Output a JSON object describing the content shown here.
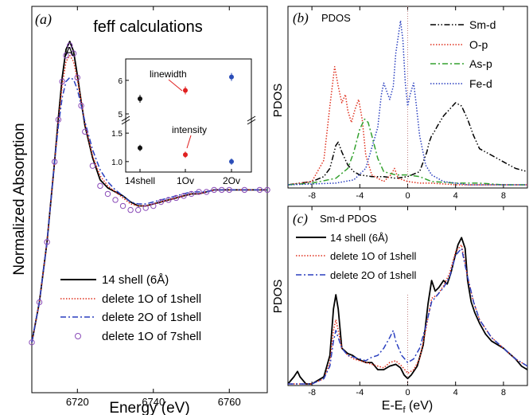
{
  "chart_data": [
    {
      "panel": "(a)",
      "type": "line",
      "title": "feff calculations",
      "xlabel": "Energy (eV)",
      "ylabel": "Normalized Absorption",
      "xlim": [
        6708,
        6770
      ],
      "ylim": [
        0,
        1.6
      ],
      "xticks": [
        6720,
        6740,
        6760
      ],
      "peak_label": "A",
      "legend_position": "bottom-left",
      "series": [
        {
          "name": "14 shell (6Å)",
          "color": "#000000",
          "style": "solid",
          "x": [
            6708,
            6710,
            6712,
            6714,
            6715,
            6716,
            6717,
            6718,
            6719,
            6720,
            6721,
            6722,
            6724,
            6726,
            6728,
            6730,
            6732,
            6734,
            6736,
            6738,
            6740,
            6742,
            6744,
            6746,
            6748,
            6750,
            6752,
            6754,
            6756,
            6758,
            6760,
            6764,
            6768,
            6770
          ],
          "y": [
            0.1,
            0.3,
            0.6,
            1.0,
            1.22,
            1.42,
            1.56,
            1.6,
            1.55,
            1.43,
            1.3,
            1.18,
            1.02,
            0.91,
            0.87,
            0.85,
            0.83,
            0.8,
            0.78,
            0.78,
            0.79,
            0.8,
            0.81,
            0.82,
            0.83,
            0.84,
            0.84,
            0.85,
            0.86,
            0.86,
            0.86,
            0.86,
            0.86,
            0.86
          ]
        },
        {
          "name": "delete 1O of 1shell",
          "color": "#e0301e",
          "style": "dotted",
          "x": [
            6708,
            6710,
            6712,
            6714,
            6715,
            6716,
            6717,
            6718,
            6719,
            6720,
            6721,
            6722,
            6724,
            6726,
            6728,
            6730,
            6732,
            6734,
            6736,
            6738,
            6740,
            6742,
            6744,
            6746,
            6748,
            6750,
            6752,
            6754,
            6756,
            6758,
            6760,
            6764,
            6768,
            6770
          ],
          "y": [
            0.1,
            0.3,
            0.6,
            1.0,
            1.2,
            1.38,
            1.5,
            1.53,
            1.5,
            1.41,
            1.3,
            1.19,
            1.03,
            0.93,
            0.88,
            0.85,
            0.82,
            0.79,
            0.78,
            0.78,
            0.79,
            0.8,
            0.81,
            0.82,
            0.83,
            0.84,
            0.84,
            0.85,
            0.86,
            0.86,
            0.86,
            0.86,
            0.86,
            0.86
          ]
        },
        {
          "name": "delete 2O of 1shell",
          "color": "#2a3fbf",
          "style": "dashdot",
          "x": [
            6708,
            6710,
            6712,
            6714,
            6715,
            6716,
            6717,
            6718,
            6719,
            6720,
            6721,
            6722,
            6724,
            6726,
            6728,
            6730,
            6732,
            6734,
            6736,
            6738,
            6740,
            6742,
            6744,
            6746,
            6748,
            6750,
            6752,
            6754,
            6756,
            6758,
            6760,
            6764,
            6768,
            6770
          ],
          "y": [
            0.1,
            0.3,
            0.6,
            1.0,
            1.18,
            1.32,
            1.4,
            1.42,
            1.41,
            1.36,
            1.28,
            1.2,
            1.06,
            0.96,
            0.9,
            0.86,
            0.83,
            0.8,
            0.79,
            0.79,
            0.8,
            0.81,
            0.82,
            0.83,
            0.84,
            0.85,
            0.85,
            0.85,
            0.86,
            0.86,
            0.86,
            0.86,
            0.86,
            0.86
          ]
        },
        {
          "name": "delete 1O of 7shell",
          "color": "#8a4bb8",
          "style": "circles",
          "x": [
            6708,
            6710,
            6712,
            6714,
            6715,
            6716,
            6717,
            6718,
            6719,
            6720,
            6721,
            6722,
            6724,
            6726,
            6728,
            6730,
            6732,
            6734,
            6736,
            6738,
            6740,
            6742,
            6744,
            6746,
            6748,
            6750,
            6752,
            6754,
            6756,
            6758,
            6760,
            6764,
            6768,
            6770
          ],
          "y": [
            0.1,
            0.3,
            0.6,
            1.0,
            1.21,
            1.4,
            1.53,
            1.58,
            1.54,
            1.42,
            1.28,
            1.15,
            0.98,
            0.88,
            0.84,
            0.81,
            0.78,
            0.76,
            0.76,
            0.77,
            0.78,
            0.8,
            0.81,
            0.82,
            0.83,
            0.84,
            0.85,
            0.85,
            0.86,
            0.86,
            0.86,
            0.86,
            0.86,
            0.86
          ]
        }
      ],
      "inset": {
        "type": "scatter",
        "categories": [
          "14shell",
          "1Ov",
          "2Ov"
        ],
        "colors": [
          "#111111",
          "#e02020",
          "#2a4db8"
        ],
        "yticks_upper": [
          "5",
          "6"
        ],
        "yticks_lower": [
          "1.0",
          "1.5"
        ],
        "upper": {
          "label": "linewidth",
          "ylim": [
            5,
            6.4
          ],
          "values": [
            5.45,
            5.7,
            6.1
          ]
        },
        "lower": {
          "label": "intensity",
          "ylim": [
            0.9,
            1.6
          ],
          "values": [
            1.24,
            1.12,
            1.0
          ]
        }
      }
    },
    {
      "panel": "(b)",
      "type": "line",
      "title": "PDOS",
      "ylabel": "PDOS",
      "xlim": [
        -10,
        10
      ],
      "ylim": [
        0,
        1.0
      ],
      "xticks": [
        -8,
        -4,
        0,
        4,
        8
      ],
      "legend_position": "top-right",
      "series": [
        {
          "name": "Sm-d",
          "color": "#000000",
          "style": "dashdotdot",
          "x": [
            -10,
            -8,
            -7,
            -6.5,
            -6,
            -5.8,
            -5.5,
            -5,
            -4.5,
            -4,
            -3,
            -2,
            -1,
            0,
            1,
            1.6,
            1.8,
            2,
            2.2,
            2.5,
            3,
            3.5,
            4,
            4.5,
            5,
            5.5,
            6,
            7,
            8,
            9,
            10
          ],
          "y": [
            0.0,
            0.02,
            0.05,
            0.1,
            0.24,
            0.26,
            0.2,
            0.12,
            0.08,
            0.06,
            0.05,
            0.05,
            0.04,
            0.05,
            0.08,
            0.2,
            0.26,
            0.3,
            0.32,
            0.36,
            0.42,
            0.46,
            0.5,
            0.48,
            0.4,
            0.3,
            0.22,
            0.18,
            0.14,
            0.1,
            0.08
          ]
        },
        {
          "name": "O-p",
          "color": "#e0301e",
          "style": "dotted",
          "x": [
            -10,
            -8,
            -7,
            -6.5,
            -6.1,
            -5.8,
            -5.5,
            -5.2,
            -5,
            -4.7,
            -4.4,
            -4.1,
            -3.8,
            -3.5,
            -3,
            -2,
            -1.4,
            -1.1,
            -0.8,
            0,
            1,
            2,
            4,
            6,
            8,
            10
          ],
          "y": [
            0.0,
            0.02,
            0.15,
            0.48,
            0.72,
            0.6,
            0.5,
            0.55,
            0.45,
            0.38,
            0.46,
            0.52,
            0.4,
            0.18,
            0.06,
            0.02,
            0.06,
            0.1,
            0.04,
            0.02,
            0.01,
            0.01,
            0.0,
            0.0,
            0.0,
            0.0
          ]
        },
        {
          "name": "As-p",
          "color": "#33a12e",
          "style": "dashdot",
          "x": [
            -10,
            -8,
            -6,
            -5,
            -4.5,
            -4,
            -3.6,
            -3.3,
            -3,
            -2.5,
            -2,
            -1,
            0,
            1,
            2,
            4,
            6,
            8,
            10
          ],
          "y": [
            0.0,
            0.01,
            0.04,
            0.1,
            0.2,
            0.34,
            0.4,
            0.38,
            0.3,
            0.16,
            0.08,
            0.06,
            0.06,
            0.05,
            0.02,
            0.01,
            0.01,
            0.0,
            0.0
          ]
        },
        {
          "name": "Fe-d",
          "color": "#2a3fbf",
          "style": "dotted",
          "x": [
            -10,
            -6,
            -4.5,
            -3.5,
            -2.5,
            -2.2,
            -2,
            -1.8,
            -1.5,
            -1.2,
            -1,
            -0.8,
            -0.6,
            -0.4,
            -0.2,
            0,
            0.2,
            0.5,
            0.7,
            1,
            1.5,
            2,
            3,
            5,
            8,
            10
          ],
          "y": [
            0.0,
            0.01,
            0.03,
            0.1,
            0.35,
            0.55,
            0.62,
            0.58,
            0.52,
            0.6,
            0.8,
            0.9,
            1.0,
            0.88,
            0.62,
            0.48,
            0.55,
            0.62,
            0.5,
            0.3,
            0.12,
            0.06,
            0.02,
            0.0,
            0.0,
            0.0
          ]
        }
      ]
    },
    {
      "panel": "(c)",
      "type": "line",
      "title": "Sm-d PDOS",
      "xlabel": "E-E",
      "xlabel_sub": "f",
      "xlabel_unit": " (eV)",
      "ylabel": "PDOS",
      "xlim": [
        -10,
        10
      ],
      "ylim": [
        0,
        1.0
      ],
      "xticks": [
        -8,
        -4,
        0,
        4,
        8
      ],
      "legend_position": "top-left",
      "series": [
        {
          "name": "14 shell (6Å)",
          "color": "#000000",
          "style": "solid",
          "x": [
            -10,
            -9.5,
            -9.2,
            -9,
            -8.5,
            -8,
            -7,
            -6.5,
            -6.2,
            -6,
            -5.8,
            -5.5,
            -5,
            -4.6,
            -4.2,
            -3.5,
            -3,
            -2.5,
            -2,
            -1.5,
            -1,
            -0.6,
            -0.3,
            0,
            0.3,
            0.8,
            1.3,
            1.7,
            2,
            2.3,
            2.6,
            3,
            3.3,
            3.6,
            3.9,
            4.2,
            4.5,
            4.8,
            5,
            5.3,
            5.6,
            6,
            6.5,
            7,
            7.5,
            8,
            8.5,
            9,
            9.5,
            10
          ],
          "y": [
            0.0,
            0.04,
            0.07,
            0.04,
            0.0,
            0.0,
            0.04,
            0.16,
            0.42,
            0.5,
            0.42,
            0.2,
            0.17,
            0.16,
            0.14,
            0.12,
            0.12,
            0.08,
            0.08,
            0.1,
            0.11,
            0.09,
            0.05,
            0.03,
            0.05,
            0.1,
            0.22,
            0.45,
            0.58,
            0.52,
            0.54,
            0.58,
            0.56,
            0.62,
            0.7,
            0.78,
            0.82,
            0.76,
            0.58,
            0.46,
            0.4,
            0.34,
            0.28,
            0.24,
            0.22,
            0.2,
            0.17,
            0.14,
            0.1,
            0.08
          ]
        },
        {
          "name": "delete 1O of 1shell",
          "color": "#e0301e",
          "style": "dotted",
          "x": [
            -10,
            -9,
            -8,
            -7,
            -6.5,
            -6.2,
            -6,
            -5.8,
            -5.5,
            -5,
            -4.5,
            -4,
            -3.5,
            -3,
            -2.5,
            -2,
            -1.5,
            -1,
            -0.5,
            0,
            0.5,
            1,
            1.5,
            2,
            2.5,
            3,
            3.5,
            4,
            4.5,
            5,
            5.5,
            6,
            7,
            8,
            9,
            10
          ],
          "y": [
            0.0,
            0.0,
            0.0,
            0.03,
            0.12,
            0.3,
            0.36,
            0.3,
            0.2,
            0.16,
            0.14,
            0.13,
            0.12,
            0.11,
            0.1,
            0.09,
            0.12,
            0.13,
            0.1,
            0.06,
            0.08,
            0.14,
            0.3,
            0.48,
            0.5,
            0.55,
            0.62,
            0.74,
            0.78,
            0.6,
            0.46,
            0.36,
            0.26,
            0.2,
            0.14,
            0.1
          ]
        },
        {
          "name": "delete 2O of 1shell",
          "color": "#2a3fbf",
          "style": "dashdot",
          "x": [
            -10,
            -9,
            -8,
            -7,
            -6.5,
            -6.2,
            -6,
            -5.8,
            -5.5,
            -5,
            -4.5,
            -4,
            -3.5,
            -3,
            -2.5,
            -2,
            -1.5,
            -1.2,
            -1,
            -0.5,
            0,
            0.5,
            1,
            1.5,
            2,
            2.5,
            3,
            3.5,
            4,
            4.5,
            5,
            5.5,
            6,
            7,
            8,
            9,
            10
          ],
          "y": [
            0.0,
            0.0,
            0.0,
            0.03,
            0.1,
            0.24,
            0.3,
            0.26,
            0.2,
            0.16,
            0.15,
            0.14,
            0.13,
            0.15,
            0.16,
            0.2,
            0.26,
            0.3,
            0.24,
            0.16,
            0.12,
            0.14,
            0.2,
            0.32,
            0.46,
            0.5,
            0.54,
            0.6,
            0.72,
            0.76,
            0.6,
            0.46,
            0.36,
            0.26,
            0.2,
            0.14,
            0.1
          ]
        }
      ]
    }
  ]
}
